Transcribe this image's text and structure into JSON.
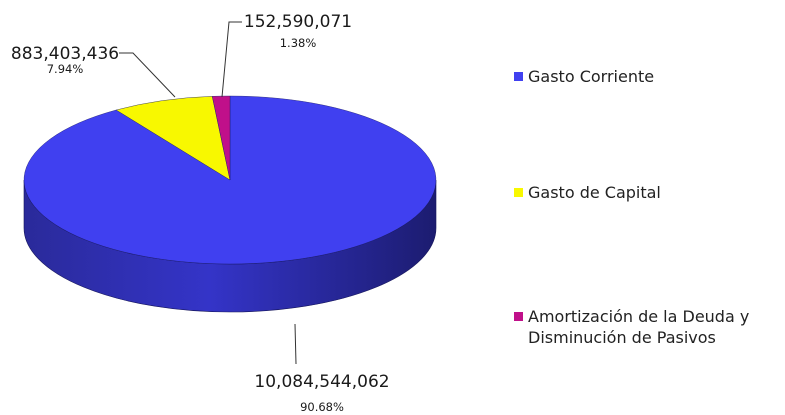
{
  "chart_data": {
    "type": "pie",
    "three_d": true,
    "categories": [
      "Gasto Corriente",
      "Gasto de Capital",
      "Amortización de la Deuda y Disminución de Pasivos"
    ],
    "values": [
      10084544062,
      883403436,
      152590071
    ],
    "value_labels": [
      "10,084,544,062",
      "883,403,436",
      "152,590,071"
    ],
    "percent_labels": [
      "90.68%",
      "7.94%",
      "1.38%"
    ],
    "colors": [
      "#4040f0",
      "#f8f800",
      "#c0108a"
    ],
    "legend_position": "right"
  }
}
